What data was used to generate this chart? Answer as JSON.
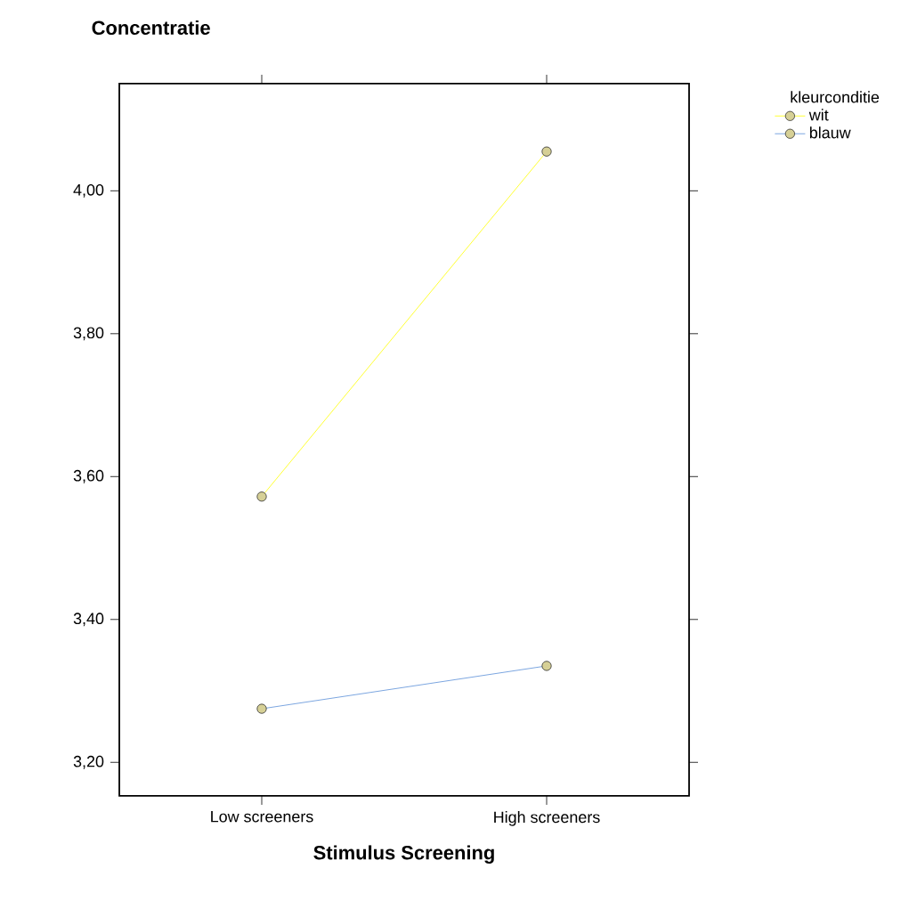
{
  "chart_data": {
    "type": "line",
    "title": "Concentratie",
    "xlabel": "Stimulus Screening",
    "legend_title": "kleurconditie",
    "categories": [
      "Low screeners",
      "High screeners"
    ],
    "series": [
      {
        "name": "wit",
        "color": "#ffff00",
        "values": [
          3.572,
          4.055
        ]
      },
      {
        "name": "blauw",
        "color": "#5b8fd8",
        "values": [
          3.275,
          3.335
        ]
      }
    ],
    "ylim": [
      3.153,
      4.15
    ],
    "yticks": [
      {
        "value": 3.2,
        "label": "3,20"
      },
      {
        "value": 3.4,
        "label": "3,40"
      },
      {
        "value": 3.6,
        "label": "3,60"
      },
      {
        "value": 3.8,
        "label": "3,80"
      },
      {
        "value": 4.0,
        "label": "4,00"
      }
    ],
    "marker": "circle",
    "line_style": "solid",
    "legend": "top right",
    "grid": false
  }
}
